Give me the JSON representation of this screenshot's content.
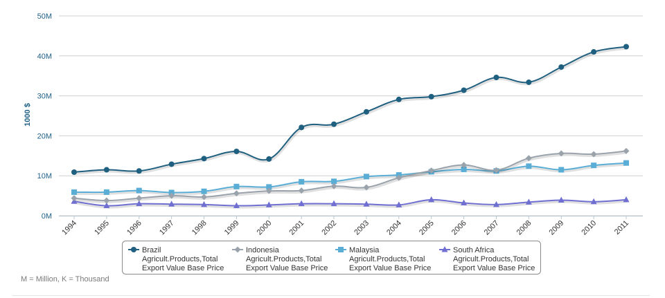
{
  "chart_data": {
    "type": "line",
    "ylabel": "1000 $",
    "xlabel": "",
    "ylim": [
      0,
      50000000
    ],
    "yticks": [
      {
        "value": 0,
        "label": "0M"
      },
      {
        "value": 10000000,
        "label": "10M"
      },
      {
        "value": 20000000,
        "label": "20M"
      },
      {
        "value": 30000000,
        "label": "30M"
      },
      {
        "value": 40000000,
        "label": "40M"
      },
      {
        "value": 50000000,
        "label": "50M"
      }
    ],
    "categories": [
      "1994",
      "1995",
      "1996",
      "1997",
      "1998",
      "1999",
      "2000",
      "2001",
      "2002",
      "2003",
      "2004",
      "2005",
      "2006",
      "2007",
      "2008",
      "2009",
      "2010",
      "2011"
    ],
    "grid": true,
    "legend_position": "bottom",
    "series": [
      {
        "name": "Brazil",
        "legend_lines": [
          "Brazil",
          "Agricult.Products,Total",
          "Export Value Base Price"
        ],
        "color": "#1f5f80",
        "marker": "circle",
        "values": [
          10900000,
          11500000,
          11200000,
          12900000,
          14300000,
          16100000,
          14200000,
          22100000,
          22900000,
          26000000,
          29100000,
          29800000,
          31400000,
          34600000,
          33400000,
          37200000,
          41000000,
          42300000
        ]
      },
      {
        "name": "Indonesia",
        "legend_lines": [
          "Indonesia",
          "Agricult.Products,Total",
          "Export Value Base Price"
        ],
        "color": "#9aa3ab",
        "marker": "diamond",
        "values": [
          4400000,
          3800000,
          4400000,
          5000000,
          4700000,
          5600000,
          6200000,
          6300000,
          7400000,
          7100000,
          9500000,
          11300000,
          12700000,
          11400000,
          14400000,
          15600000,
          15400000,
          16200000
        ]
      },
      {
        "name": "Malaysia",
        "legend_lines": [
          "Malaysia",
          "Agricult.Products,Total",
          "Export Value Base Price"
        ],
        "color": "#5aaed6",
        "marker": "square",
        "values": [
          5900000,
          5900000,
          6300000,
          5800000,
          6100000,
          7300000,
          7200000,
          8500000,
          8600000,
          9800000,
          10200000,
          11000000,
          11600000,
          11200000,
          12400000,
          11500000,
          12600000,
          13200000
        ]
      },
      {
        "name": "South Africa",
        "legend_lines": [
          "South Africa",
          "Agricult.Products,Total",
          "Export Value Base Price"
        ],
        "color": "#6f6fd1",
        "marker": "triangle",
        "values": [
          3600000,
          2500000,
          3000000,
          2900000,
          2800000,
          2500000,
          2700000,
          3000000,
          3000000,
          2900000,
          2700000,
          4000000,
          3200000,
          2800000,
          3400000,
          3900000,
          3500000,
          4000000
        ]
      }
    ]
  },
  "footnote": "M = Million, K = Thousand"
}
